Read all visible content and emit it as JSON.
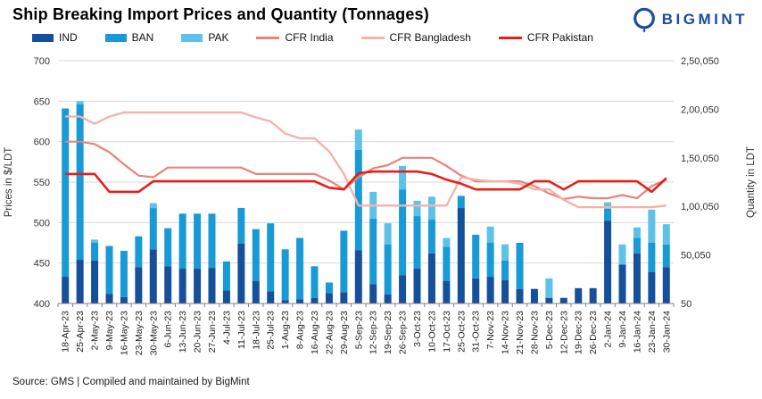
{
  "header": {
    "title": "Ship Breaking Import Prices and Quantity (Tonnages)",
    "brand": "BIGMINT"
  },
  "footer": {
    "source": "Source: GMS | Compiled and maintained by BigMint"
  },
  "colors": {
    "ind_bar": "#15509b",
    "ban_bar": "#189ad6",
    "pak_bar": "#5ec1e8",
    "cfr_india_line": "#e8837a",
    "cfr_bangladesh_line": "#f2b3ac",
    "cfr_pakistan_line": "#e3201b",
    "grid": "#d9d9d9",
    "axis_text": "#333333",
    "logo_blue": "#1b4aa0"
  },
  "chart_data": {
    "type": "combo: stacked bar (quantity, right axis) + line (price, left axis)",
    "categories": [
      "18-Apr-23",
      "25-Apr-23",
      "2-May-23",
      "9-May-23",
      "16-May-23",
      "23-May-23",
      "30-May-23",
      "6-Jun-23",
      "13-Jun-23",
      "20-Jun-23",
      "27-Jun-23",
      "4-Jul-23",
      "11-Jul-23",
      "18-Jul-23",
      "25-Jul-23",
      "1-Aug-23",
      "8-Aug-23",
      "16-Aug-23",
      "22-Aug-23",
      "29-Aug-23",
      "5-Sep-23",
      "12-Sep-23",
      "19-Sep-23",
      "26-Sep-23",
      "3-Oct-23",
      "10-Oct-23",
      "17-Oct-23",
      "25-Oct-23",
      "31-Oct-23",
      "7-Nov-23",
      "14-Nov-23",
      "21-Nov-23",
      "28-Nov-23",
      "5-Dec-23",
      "12-Dec-23",
      "19-Dec-23",
      "26-Dec-23",
      "2-Jan-24",
      "9-Jan-24",
      "16-Jan-24",
      "23-Jan-24",
      "30-Jan-24"
    ],
    "bar_series": [
      {
        "name": "IND",
        "unit": "LDT",
        "axis": "right",
        "color": "#15509b",
        "values": [
          27500,
          45000,
          44200,
          10000,
          6700,
          37500,
          55800,
          38300,
          35800,
          35800,
          36700,
          13300,
          61700,
          23300,
          12500,
          3300,
          4200,
          5800,
          10800,
          11700,
          55000,
          20000,
          9200,
          29200,
          35800,
          51700,
          23300,
          98300,
          25800,
          27500,
          24200,
          15000,
          15000,
          5800,
          5800,
          15800,
          15800,
          85000,
          40000,
          51700,
          32500,
          37500
        ]
      },
      {
        "name": "BAN",
        "unit": "LDT",
        "axis": "right",
        "color": "#189ad6",
        "values": [
          173300,
          160000,
          18300,
          49200,
          47500,
          31700,
          42500,
          39200,
          56700,
          56700,
          55800,
          30000,
          36700,
          53300,
          70000,
          52500,
          63300,
          32500,
          10800,
          63300,
          103300,
          67500,
          51700,
          88300,
          54200,
          35000,
          35000,
          12500,
          45000,
          35000,
          20000,
          47500,
          0,
          0,
          0,
          0,
          0,
          12500,
          0,
          15800,
          30000,
          23300
        ]
      },
      {
        "name": "PAK",
        "unit": "LDT",
        "axis": "right",
        "color": "#5ec1e8",
        "values": [
          0,
          3300,
          3300,
          0,
          0,
          0,
          5000,
          0,
          0,
          0,
          0,
          0,
          0,
          0,
          0,
          0,
          0,
          0,
          0,
          0,
          20800,
          27500,
          21700,
          24200,
          15800,
          23300,
          9200,
          0,
          0,
          16700,
          16700,
          0,
          0,
          20000,
          0,
          0,
          0,
          6700,
          20800,
          10800,
          34200,
          20800
        ]
      }
    ],
    "line_series": [
      {
        "name": "CFR India",
        "unit": "$/LDT",
        "axis": "left",
        "color": "#e8837a",
        "width": 2.2,
        "values": [
          600,
          600,
          597,
          587,
          572,
          558,
          556,
          568,
          568,
          568,
          568,
          568,
          568,
          560,
          560,
          560,
          560,
          560,
          552,
          541,
          556,
          567,
          571,
          580,
          580,
          580,
          570,
          558,
          551,
          551,
          551,
          551,
          545,
          536,
          529,
          532,
          530,
          530,
          534,
          530,
          545,
          553
        ]
      },
      {
        "name": "CFR Bangladesh",
        "unit": "$/LDT",
        "axis": "left",
        "color": "#f2b3ac",
        "width": 2.4,
        "values": [
          631,
          631,
          622,
          631,
          636,
          636,
          636,
          636,
          636,
          636,
          636,
          636,
          636,
          630,
          625,
          610,
          604,
          604,
          588,
          560,
          521,
          521,
          521,
          521,
          521,
          521,
          521,
          556,
          553,
          551,
          551,
          548,
          541,
          541,
          528,
          519,
          519,
          519,
          519,
          519,
          519,
          521
        ]
      },
      {
        "name": "CFR Pakistan",
        "unit": "$/LDT",
        "axis": "left",
        "color": "#e3201b",
        "width": 2.6,
        "values": [
          560,
          560,
          560,
          538,
          538,
          538,
          551,
          551,
          551,
          551,
          551,
          551,
          551,
          551,
          551,
          551,
          551,
          551,
          543,
          541,
          561,
          563,
          563,
          563,
          563,
          560,
          553,
          548,
          541,
          541,
          541,
          541,
          551,
          551,
          541,
          551,
          551,
          551,
          551,
          551,
          538,
          555
        ]
      }
    ],
    "left_axis": {
      "title": "Prices in $/LDT",
      "min": 400,
      "max": 700,
      "ticks": [
        700,
        650,
        600,
        550,
        500,
        450,
        400
      ]
    },
    "right_axis": {
      "title": "Quantity in LDT",
      "min": 50,
      "max": 250050,
      "ticks": [
        {
          "label": "2,50,050",
          "value": 250050
        },
        {
          "label": "2,00,050",
          "value": 200050
        },
        {
          "label": "1,50,050",
          "value": 150050
        },
        {
          "label": "1,00,050",
          "value": 100050
        },
        {
          "label": "50,050",
          "value": 50050
        },
        {
          "label": "50",
          "value": 50
        }
      ]
    },
    "grid": "horizontal only",
    "legend_position": "top"
  }
}
